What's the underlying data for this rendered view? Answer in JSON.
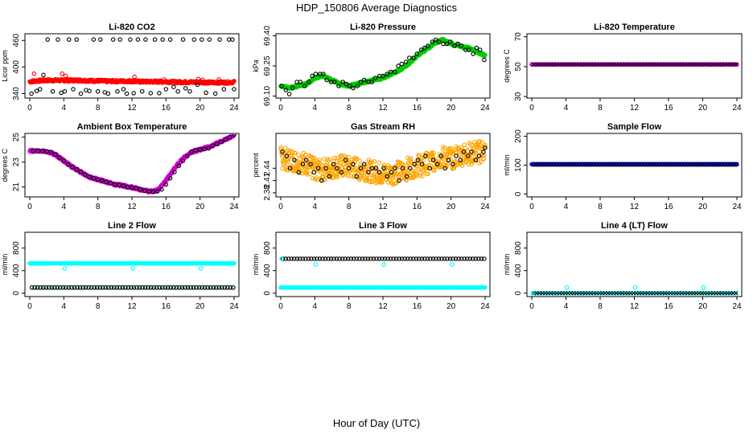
{
  "page": {
    "title": "HDP_150806  Average Diagnostics",
    "xlabel": "Hour of Day (UTC)"
  },
  "chart_data": [
    {
      "type": "scatter",
      "title": "Li-820 CO2",
      "ylabel": "Licor ppm",
      "xlim": [
        0,
        24
      ],
      "ylim": [
        330,
        475
      ],
      "x_ticks": [
        0,
        4,
        8,
        12,
        16,
        20,
        24
      ],
      "y_ticks": [
        340,
        400,
        460
      ],
      "grid": false,
      "series": [
        {
          "color": "#ff0000",
          "marker": "circle-open",
          "kind": "dense",
          "x": [
            0,
            1,
            2,
            3,
            4,
            5,
            6,
            7,
            8,
            9,
            10,
            11,
            12,
            13,
            14,
            15,
            16,
            17,
            18,
            19,
            20,
            21,
            22,
            23,
            24
          ],
          "y": [
            367,
            369,
            370,
            370,
            370,
            370,
            370,
            369,
            369,
            368,
            368,
            368,
            368,
            367,
            367,
            367,
            367,
            366,
            366,
            366,
            366,
            365,
            365,
            365,
            366
          ]
        },
        {
          "color": "#ff0000",
          "marker": "circle-open",
          "kind": "points",
          "x": [
            0.5,
            3.8,
            4.2,
            12.3,
            15.8,
            19.8,
            20.3,
            22.2
          ],
          "y": [
            385,
            385,
            380,
            378,
            372,
            373,
            371,
            372
          ]
        },
        {
          "color": "#000000",
          "marker": "circle-open",
          "kind": "points",
          "x": [
            0.2,
            0.8,
            1.2,
            1.6,
            2.1,
            2.7,
            3.3,
            3.7,
            4.1,
            4.6,
            5.1,
            5.5,
            6.0,
            6.6,
            7.0,
            7.5,
            8.0,
            8.3,
            8.8,
            9.2,
            9.8,
            10.3,
            10.6,
            11.0,
            11.4,
            11.8,
            12.2,
            12.7,
            13.2,
            13.6,
            14.2,
            14.7,
            15.2,
            15.6,
            16.0,
            16.5,
            16.9,
            17.4,
            18.0,
            18.3,
            18.8,
            19.3,
            19.7,
            20.2,
            20.7,
            21.1,
            21.8,
            22.3,
            22.8,
            23.4,
            23.8,
            24.0
          ],
          "y": [
            340,
            346,
            350,
            382,
            462,
            345,
            462,
            342,
            345,
            462,
            350,
            462,
            340,
            348,
            346,
            462,
            345,
            462,
            343,
            340,
            462,
            345,
            462,
            350,
            340,
            462,
            341,
            462,
            345,
            462,
            341,
            462,
            341,
            462,
            350,
            462,
            355,
            345,
            462,
            352,
            345,
            462,
            360,
            462,
            342,
            462,
            340,
            462,
            350,
            462,
            462,
            350
          ]
        }
      ]
    },
    {
      "type": "scatter",
      "title": "Li-820 Pressure",
      "ylabel": "kPa",
      "xlim": [
        0,
        24
      ],
      "ylim": [
        69.09,
        69.41
      ],
      "x_ticks": [
        0,
        4,
        8,
        12,
        16,
        20,
        24
      ],
      "y_ticks": [
        69.1,
        69.25,
        69.4
      ],
      "y_tick_labels": [
        "69.10",
        "69.25",
        "69.40"
      ],
      "grid": false,
      "series": [
        {
          "color": "#00cc00",
          "marker": "circle-open",
          "kind": "dense",
          "x": [
            0,
            1,
            2,
            3,
            4,
            5,
            6,
            7,
            8,
            9,
            10,
            11,
            12,
            13,
            14,
            15,
            16,
            17,
            18,
            19,
            20,
            21,
            22,
            23,
            24
          ],
          "y": [
            69.15,
            69.14,
            69.15,
            69.16,
            69.19,
            69.2,
            69.18,
            69.16,
            69.15,
            69.16,
            69.17,
            69.18,
            69.19,
            69.21,
            69.23,
            69.26,
            69.3,
            69.33,
            69.36,
            69.38,
            69.36,
            69.35,
            69.34,
            69.32,
            69.3
          ]
        },
        {
          "color": "#000000",
          "marker": "circle-open",
          "kind": "points",
          "x": [
            0.1,
            0.6,
            1.0,
            1.4,
            1.9,
            2.3,
            2.8,
            3.3,
            3.7,
            4.1,
            4.6,
            5.0,
            5.4,
            5.9,
            6.3,
            6.8,
            7.3,
            7.7,
            8.1,
            8.5,
            9.0,
            9.4,
            9.8,
            10.3,
            10.7,
            11.1,
            11.6,
            12.0,
            12.5,
            12.9,
            13.4,
            13.8,
            14.2,
            14.7,
            15.1,
            15.6,
            16.0,
            16.5,
            16.9,
            17.3,
            17.8,
            18.2,
            18.6,
            19.1,
            19.5,
            19.9,
            20.4,
            20.8,
            21.2,
            21.7,
            22.1,
            22.6,
            23.0,
            23.4,
            23.9
          ],
          "y": [
            69.15,
            69.13,
            69.11,
            69.14,
            69.17,
            69.17,
            69.15,
            69.17,
            69.2,
            69.21,
            69.21,
            69.21,
            69.18,
            69.17,
            69.17,
            69.15,
            69.17,
            69.16,
            69.15,
            69.14,
            69.15,
            69.17,
            69.18,
            69.17,
            69.17,
            69.19,
            69.2,
            69.2,
            69.21,
            69.22,
            69.22,
            69.25,
            69.26,
            69.27,
            69.29,
            69.29,
            69.31,
            69.33,
            69.34,
            69.35,
            69.37,
            69.38,
            69.37,
            69.36,
            69.36,
            69.37,
            69.35,
            69.36,
            69.35,
            69.33,
            69.33,
            69.31,
            69.34,
            69.33,
            69.28
          ]
        }
      ]
    },
    {
      "type": "scatter",
      "title": "Li-820 Temperature",
      "ylabel": "degrees C",
      "xlim": [
        0,
        24
      ],
      "ylim": [
        29,
        72
      ],
      "x_ticks": [
        0,
        4,
        8,
        12,
        16,
        20,
        24
      ],
      "y_ticks": [
        30,
        50,
        70
      ],
      "grid": false,
      "series": [
        {
          "color": "#cc00cc",
          "marker": "circle-open",
          "kind": "flat",
          "value": 51.5
        },
        {
          "color": "#000000",
          "marker": "cross",
          "kind": "flat-sparse",
          "value": 51.5
        }
      ]
    },
    {
      "type": "scatter",
      "title": "Ambient Box Temperature",
      "ylabel": "degrees C",
      "xlim": [
        0,
        24
      ],
      "ylim": [
        20.2,
        25.3
      ],
      "x_ticks": [
        0,
        4,
        8,
        12,
        16,
        20,
        24
      ],
      "y_ticks": [
        21,
        23,
        25
      ],
      "grid": false,
      "series": [
        {
          "color": "#cc00cc",
          "marker": "circle-open",
          "kind": "dense",
          "x": [
            0,
            1,
            2,
            3,
            4,
            5,
            6,
            7,
            8,
            9,
            10,
            11,
            12,
            13,
            14,
            15,
            16,
            17,
            18,
            19,
            20,
            21,
            22,
            23,
            24
          ],
          "y": [
            23.9,
            23.9,
            23.85,
            23.6,
            23.1,
            22.6,
            22.2,
            21.8,
            21.6,
            21.4,
            21.2,
            21.1,
            20.95,
            20.8,
            20.65,
            20.7,
            21.5,
            22.5,
            23.3,
            23.8,
            24.0,
            24.2,
            24.5,
            24.8,
            25.2
          ]
        },
        {
          "color": "#000000",
          "marker": "circle-open",
          "kind": "points",
          "x": [
            0.4,
            1.0,
            1.5,
            2.0,
            2.5,
            3.0,
            3.5,
            4.0,
            4.5,
            5.0,
            5.5,
            6.0,
            6.5,
            7.0,
            7.5,
            8.0,
            8.5,
            9.0,
            9.5,
            10.0,
            10.5,
            11.0,
            11.5,
            12.0,
            12.5,
            13.0,
            13.5,
            14.0,
            14.5,
            15.0,
            15.5,
            16.0,
            16.5,
            17.0,
            17.5,
            18.0,
            18.5,
            19.0,
            19.5,
            20.0,
            20.5,
            21.0,
            21.5,
            22.0,
            22.5,
            23.0,
            23.5,
            24.0
          ],
          "y": [
            23.9,
            23.9,
            23.9,
            23.85,
            23.8,
            23.6,
            23.35,
            23.1,
            22.8,
            22.6,
            22.4,
            22.2,
            22.0,
            21.8,
            21.7,
            21.6,
            21.5,
            21.4,
            21.3,
            21.2,
            21.15,
            21.1,
            21.0,
            20.95,
            20.9,
            20.8,
            20.7,
            20.65,
            20.6,
            20.65,
            20.8,
            21.2,
            21.7,
            22.2,
            22.7,
            23.1,
            23.5,
            23.8,
            23.95,
            24.0,
            24.05,
            24.1,
            24.3,
            24.45,
            24.6,
            24.8,
            25.0,
            25.2
          ]
        }
      ]
    },
    {
      "type": "scatter",
      "title": "Gas Stream RH",
      "ylabel": "percent",
      "xlim": [
        0,
        24
      ],
      "ylim": [
        2.37,
        2.525
      ],
      "x_ticks": [
        0,
        4,
        8,
        12,
        16,
        20,
        24
      ],
      "y_ticks": [
        2.38,
        2.41,
        2.44
      ],
      "y_tick_labels": [
        "2.38",
        "2.41",
        "2.44"
      ],
      "grid": false,
      "series": [
        {
          "color": "#ffa500",
          "marker": "circle-open",
          "kind": "band",
          "x": [
            0,
            1,
            2,
            3,
            4,
            5,
            6,
            7,
            8,
            9,
            10,
            11,
            12,
            13,
            14,
            15,
            16,
            17,
            18,
            19,
            20,
            21,
            22,
            23,
            24
          ],
          "y": [
            2.465,
            2.46,
            2.455,
            2.45,
            2.44,
            2.435,
            2.44,
            2.445,
            2.44,
            2.44,
            2.435,
            2.43,
            2.425,
            2.425,
            2.43,
            2.44,
            2.445,
            2.45,
            2.46,
            2.465,
            2.465,
            2.47,
            2.475,
            2.48,
            2.48
          ],
          "spread": 0.055
        },
        {
          "color": "#000000",
          "marker": "circle-open",
          "kind": "points",
          "x": [
            0.2,
            0.7,
            1.1,
            1.6,
            2.1,
            2.6,
            3.0,
            3.5,
            3.9,
            4.4,
            4.8,
            5.3,
            5.7,
            6.2,
            6.6,
            7.1,
            7.6,
            8.0,
            8.5,
            8.9,
            9.4,
            9.8,
            10.3,
            10.7,
            11.2,
            11.6,
            12.1,
            12.5,
            13.0,
            13.4,
            13.9,
            14.3,
            14.8,
            15.2,
            15.7,
            16.1,
            16.6,
            17.0,
            17.5,
            17.9,
            18.4,
            18.8,
            19.3,
            19.7,
            20.2,
            20.6,
            21.1,
            21.5,
            22.0,
            22.4,
            22.9,
            23.3,
            23.8,
            24.0
          ],
          "y": [
            2.48,
            2.47,
            2.44,
            2.46,
            2.43,
            2.45,
            2.46,
            2.45,
            2.43,
            2.44,
            2.41,
            2.44,
            2.42,
            2.45,
            2.44,
            2.43,
            2.46,
            2.44,
            2.45,
            2.42,
            2.44,
            2.45,
            2.43,
            2.44,
            2.44,
            2.43,
            2.44,
            2.42,
            2.43,
            2.44,
            2.41,
            2.44,
            2.42,
            2.44,
            2.45,
            2.46,
            2.45,
            2.47,
            2.44,
            2.46,
            2.45,
            2.47,
            2.44,
            2.46,
            2.45,
            2.47,
            2.46,
            2.48,
            2.47,
            2.48,
            2.46,
            2.47,
            2.48,
            2.49
          ]
        }
      ]
    },
    {
      "type": "scatter",
      "title": "Sample Flow",
      "ylabel": "ml/min",
      "xlim": [
        0,
        24
      ],
      "ylim": [
        -10,
        210
      ],
      "x_ticks": [
        0,
        4,
        8,
        12,
        16,
        20,
        24
      ],
      "y_ticks": [
        0,
        100,
        200
      ],
      "grid": false,
      "series": [
        {
          "color": "#0000ff",
          "marker": "circle-open",
          "kind": "flat",
          "value": 103
        },
        {
          "color": "#000000",
          "marker": "circle-open",
          "kind": "flat-sparse",
          "value": 102
        }
      ]
    },
    {
      "type": "scatter",
      "title": "Line 2 Flow",
      "ylabel": "ml/min",
      "xlim": [
        0,
        24
      ],
      "ylim": [
        -60,
        1080
      ],
      "x_ticks": [
        0,
        4,
        8,
        12,
        16,
        20,
        24
      ],
      "y_ticks": [
        0,
        400,
        800
      ],
      "grid": false,
      "series": [
        {
          "color": "#00ffff",
          "marker": "circle-open",
          "kind": "flat",
          "value": 530
        },
        {
          "color": "#00ffff",
          "marker": "circle-open",
          "kind": "points",
          "x": [
            4.1,
            12.1,
            20.1
          ],
          "y": [
            440,
            440,
            440
          ]
        },
        {
          "color": "#00ffff",
          "marker": "circle-open",
          "kind": "flat-sparse",
          "value": 100
        },
        {
          "color": "#000000",
          "marker": "circle-open",
          "kind": "flat-sparse",
          "value": 100
        }
      ]
    },
    {
      "type": "scatter",
      "title": "Line 3 Flow",
      "ylabel": "ml/min",
      "xlim": [
        0,
        24
      ],
      "ylim": [
        -60,
        1080
      ],
      "x_ticks": [
        0,
        4,
        8,
        12,
        16,
        20,
        24
      ],
      "y_ticks": [
        0,
        400,
        800
      ],
      "grid": false,
      "series": [
        {
          "color": "#000000",
          "marker": "circle-open",
          "kind": "flat-sparse",
          "value": 610
        },
        {
          "color": "#00ffff",
          "marker": "circle-open",
          "kind": "points",
          "x": [
            0.1,
            4.1,
            12.1,
            20.1
          ],
          "y": [
            610,
            510,
            510,
            510
          ]
        },
        {
          "color": "#00ffff",
          "marker": "circle-open",
          "kind": "flat",
          "value": 100
        }
      ]
    },
    {
      "type": "scatter",
      "title": "Line 4 (LT) Flow",
      "ylabel": "ml/min",
      "xlim": [
        0,
        24
      ],
      "ylim": [
        -60,
        1080
      ],
      "x_ticks": [
        0,
        4,
        8,
        12,
        16,
        20,
        24
      ],
      "y_ticks": [
        0,
        400,
        800
      ],
      "grid": false,
      "series": [
        {
          "color": "#00ffff",
          "marker": "circle-open",
          "kind": "flat-sparse",
          "value": 0
        },
        {
          "color": "#000000",
          "marker": "cross",
          "kind": "flat-sparse",
          "value": 0
        },
        {
          "color": "#00ffff",
          "marker": "circle-open",
          "kind": "points",
          "x": [
            0.1,
            4.1,
            12.1,
            20.1
          ],
          "y": [
            0,
            100,
            100,
            100
          ]
        }
      ]
    }
  ]
}
